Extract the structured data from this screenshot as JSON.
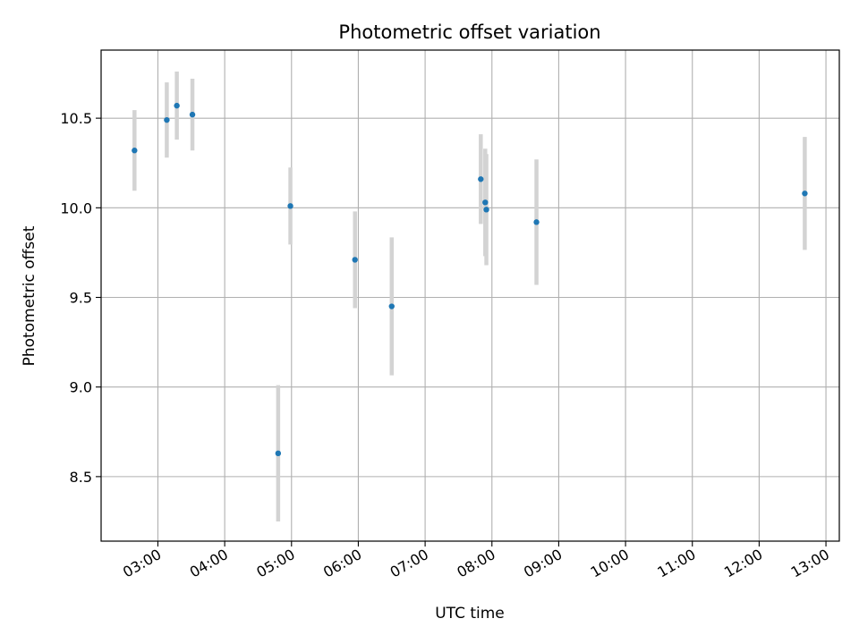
{
  "chart_data": {
    "type": "scatter",
    "title": "Photometric offset variation",
    "xlabel": "UTC time",
    "ylabel": "Photometric offset",
    "x_ticks": [
      "03:00",
      "04:00",
      "05:00",
      "06:00",
      "07:00",
      "08:00",
      "09:00",
      "10:00",
      "11:00",
      "12:00",
      "13:00"
    ],
    "y_ticks": [
      "8.5",
      "9.0",
      "9.5",
      "10.0",
      "10.5"
    ],
    "xlim": [
      "02:09",
      "13:12"
    ],
    "ylim": [
      8.14,
      10.88
    ],
    "grid": true,
    "marker_color": "#1f77b4",
    "errorbar_color": "#d3d3d3",
    "points": [
      {
        "x": "02:39",
        "y": 10.32,
        "err": 0.225
      },
      {
        "x": "03:08",
        "y": 10.49,
        "err": 0.21
      },
      {
        "x": "03:17",
        "y": 10.57,
        "err": 0.19
      },
      {
        "x": "03:31",
        "y": 10.52,
        "err": 0.2
      },
      {
        "x": "04:48",
        "y": 8.63,
        "err": 0.38
      },
      {
        "x": "04:59",
        "y": 10.01,
        "err": 0.215
      },
      {
        "x": "05:57",
        "y": 9.71,
        "err": 0.27
      },
      {
        "x": "06:30",
        "y": 9.45,
        "err": 0.385
      },
      {
        "x": "07:50",
        "y": 10.16,
        "err": 0.25
      },
      {
        "x": "07:54",
        "y": 10.03,
        "err": 0.3
      },
      {
        "x": "07:55",
        "y": 9.99,
        "err": 0.31
      },
      {
        "x": "08:40",
        "y": 9.92,
        "err": 0.35
      },
      {
        "x": "12:41",
        "y": 10.08,
        "err": 0.315
      }
    ]
  }
}
